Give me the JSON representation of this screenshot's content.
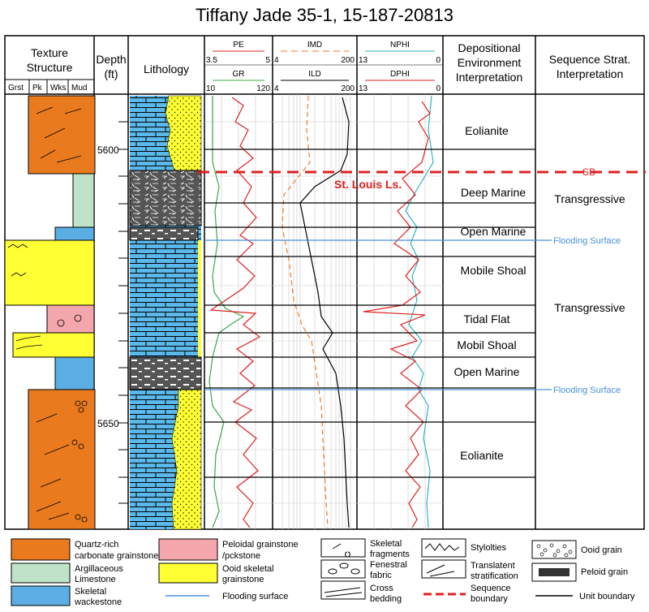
{
  "title": "Tiffany Jade 35-1, 15-187-20813",
  "columns": {
    "texture": {
      "title_line1": "Texture",
      "title_line2": "Structure",
      "sub": [
        "Grst",
        "Pk",
        "Wks",
        "Mud"
      ]
    },
    "depth": {
      "title_line1": "Depth",
      "title_line2": "(ft)"
    },
    "lithology": {
      "title": "Lithology"
    },
    "track1": {
      "curve_a": "PE",
      "a_min": "3.5",
      "a_max": "5",
      "curve_b": "GR",
      "b_min": "10",
      "b_max": "120"
    },
    "track2": {
      "curve_a": "IMD",
      "a_min": "4",
      "a_max": "200",
      "curve_b": "ILD",
      "b_min": "4",
      "b_max": "200"
    },
    "track3": {
      "curve_a": "NPHI",
      "a_min": "13",
      "a_max": "0",
      "curve_b": "DPHI",
      "b_min": "13",
      "b_max": "0"
    },
    "environment": {
      "title_line1": "Depositional",
      "title_line2": "Environment",
      "title_line3": "Interpretation"
    },
    "sequence": {
      "title_line1": "Sequence Strat.",
      "title_line2": "Interpretation"
    }
  },
  "depth_labels": [
    "5600",
    "5650"
  ],
  "environments": [
    "Eolianite",
    "Deep Marine",
    "Open Marine",
    "Mobile Shoal",
    "Tidal Flat",
    "Mobil Shoal",
    "Open Marine",
    "Eolianite"
  ],
  "sequence_labels": [
    "Transgressive",
    "Transgressive"
  ],
  "markers": {
    "formation": "St. Louis Ls.",
    "sb": "SB",
    "flooding_1": "Flooding Surface",
    "flooding_2": "Flooding Surface"
  },
  "legend": {
    "quartz": [
      "Quartz-rich",
      "carbonate grainstone"
    ],
    "argillaceous": [
      "Argillaceous",
      "Limestone"
    ],
    "skeletal": [
      "Skeletal",
      "wackestone"
    ],
    "peloidal": [
      "Peloidal grainstone",
      "/pckstone"
    ],
    "ooid_skeletal": [
      "Ooid skeletal",
      "grainstone"
    ],
    "flooding": "Flooding surface",
    "skel_frag": [
      "Skeletal",
      "fragments"
    ],
    "fenestral": [
      "Fenestral",
      "fabric"
    ],
    "cross": [
      "Cross",
      "bedding"
    ],
    "stylolites": "Stylolties",
    "translant": [
      "Translatent",
      "stratification"
    ],
    "seq_boundary": [
      "Sequence",
      "boundary"
    ],
    "ooid_grain": "Ooid grain",
    "peloid_grain": "Peloid grain",
    "unit_boundary": "Unit boundary"
  },
  "colors": {
    "quartz": "#e97a1e",
    "argillaceous": "#bfe2c9",
    "skeletal": "#5aaee3",
    "peloidal": "#f3a6ab",
    "ooid": "#ffff33",
    "limestone": "#5bb8ea",
    "sand": "#ffff33",
    "shale": "#555555",
    "red_curve": "#e02020",
    "green_curve": "#3aa84a",
    "orange_curve": "#f07a2a",
    "cyan_curve": "#2fb4c4",
    "sb_line": "#e02020",
    "flooding_line": "#4a90d9"
  }
}
